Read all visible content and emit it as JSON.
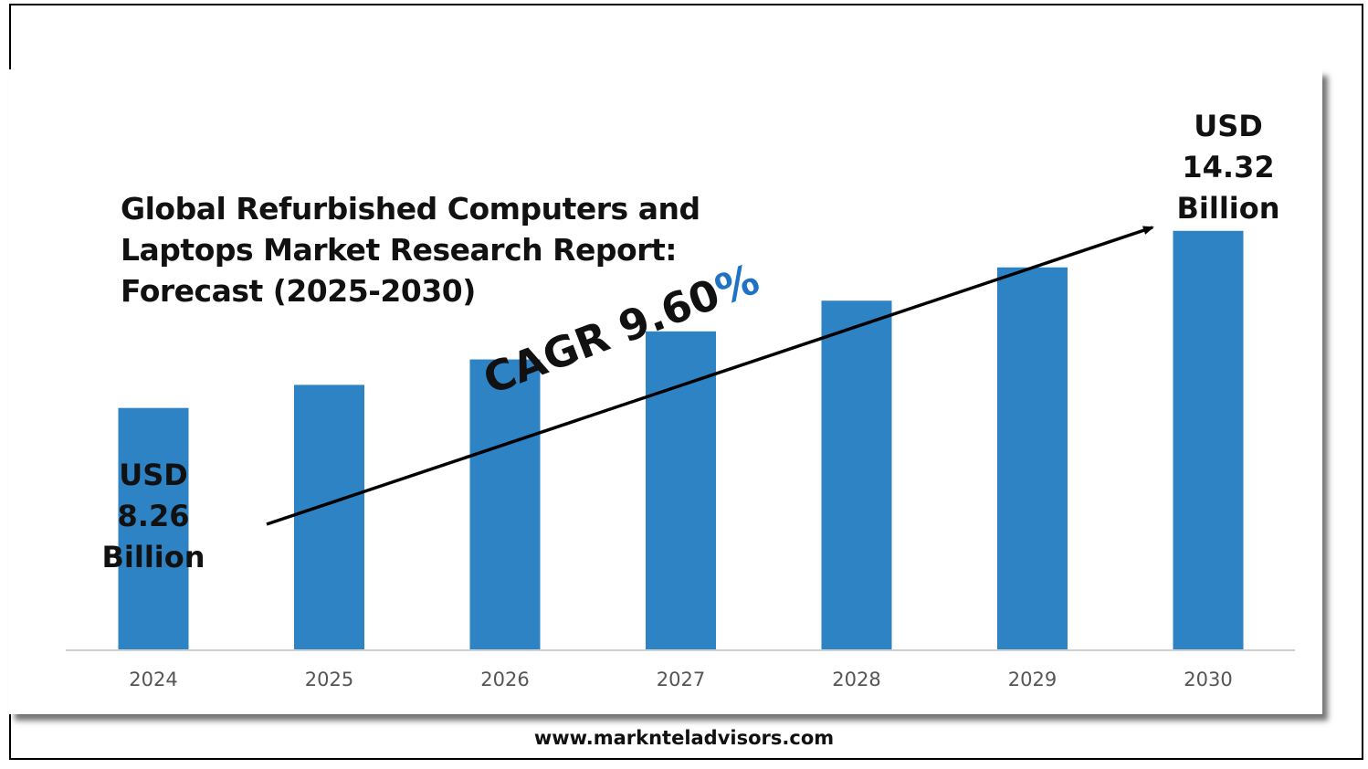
{
  "title_lines": [
    "Global Refurbished Computers and",
    "Laptops Market Research Report:",
    "Forecast (2025-2030)"
  ],
  "start_value": {
    "currency": "USD",
    "value": "8.26",
    "unit": "Billion"
  },
  "end_value": {
    "currency": "USD",
    "value": "14.32",
    "unit": "Billion"
  },
  "cagr": {
    "prefix": "CAGR 9.60",
    "suffix": "%"
  },
  "footer": {
    "url": "www.marknteladvisors.com"
  },
  "colors": {
    "bar": "#2e83c5",
    "percent": "#1f73c4",
    "axis": "#cfcfcf",
    "text": "#111111",
    "tick": "#555555"
  },
  "chart_data": {
    "type": "bar",
    "categories": [
      "2024",
      "2025",
      "2026",
      "2027",
      "2028",
      "2029",
      "2030"
    ],
    "values": [
      8.26,
      9.05,
      9.92,
      10.88,
      11.93,
      13.07,
      14.32
    ],
    "ylim": [
      0,
      16
    ],
    "grid": false,
    "legend": "none"
  }
}
